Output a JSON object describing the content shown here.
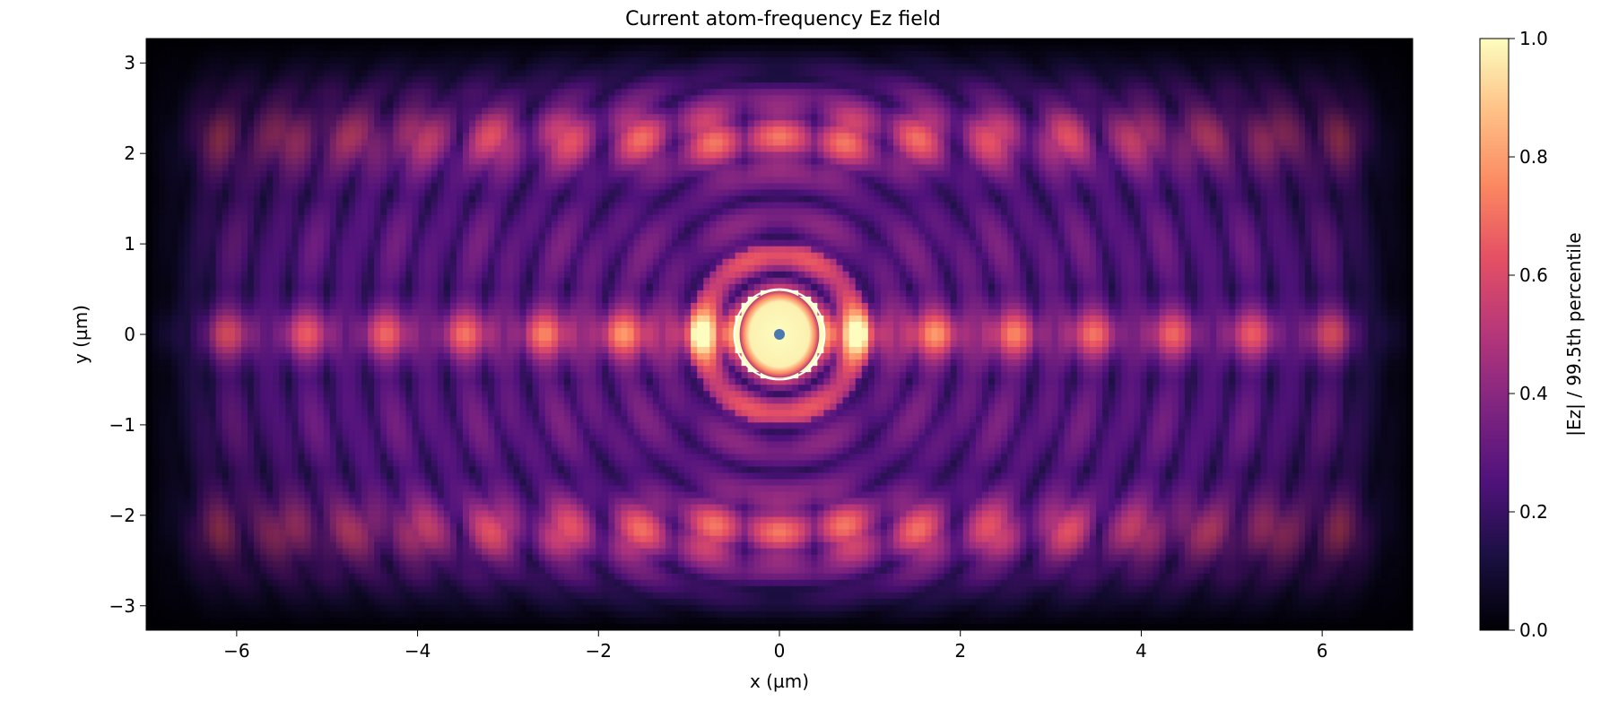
{
  "chart_data": {
    "type": "heatmap",
    "title": "Current atom-frequency Ez field",
    "xlabel": "x (µm)",
    "ylabel": "y (µm)",
    "xlim": [
      -7,
      7
    ],
    "ylim": [
      -3.27,
      3.27
    ],
    "x_ticks": [
      {
        "value": -6,
        "label": "−6"
      },
      {
        "value": -4,
        "label": "−4"
      },
      {
        "value": -2,
        "label": "−2"
      },
      {
        "value": 0,
        "label": "0"
      },
      {
        "value": 2,
        "label": "2"
      },
      {
        "value": 4,
        "label": "4"
      },
      {
        "value": 6,
        "label": "6"
      }
    ],
    "y_ticks": [
      {
        "value": 3,
        "label": "3"
      },
      {
        "value": 2,
        "label": "2"
      },
      {
        "value": 1,
        "label": "1"
      },
      {
        "value": 0,
        "label": "0"
      },
      {
        "value": -1,
        "label": "−1"
      },
      {
        "value": -2,
        "label": "−2"
      },
      {
        "value": -3,
        "label": "−3"
      }
    ],
    "colormap": "magma",
    "colorbar": {
      "label": "|Ez| / 99.5th percentile",
      "range": [
        0,
        1
      ],
      "ticks": [
        {
          "value": 0.0,
          "label": "0.0"
        },
        {
          "value": 0.2,
          "label": "0.2"
        },
        {
          "value": 0.4,
          "label": "0.4"
        },
        {
          "value": 0.6,
          "label": "0.6"
        },
        {
          "value": 0.8,
          "label": "0.8"
        },
        {
          "value": 1.0,
          "label": "1.0"
        }
      ]
    },
    "field_description": {
      "peak_at": [
        0,
        0
      ],
      "peak_value": 1.0,
      "background_level": 0.2
    },
    "overlays": {
      "circle": {
        "center": [
          0,
          0
        ],
        "radius_um": 0.5,
        "color": "#ffffff"
      },
      "atom_marker": {
        "x": 0,
        "y": 0,
        "color": "#4a7ab0"
      }
    },
    "grid": false
  }
}
